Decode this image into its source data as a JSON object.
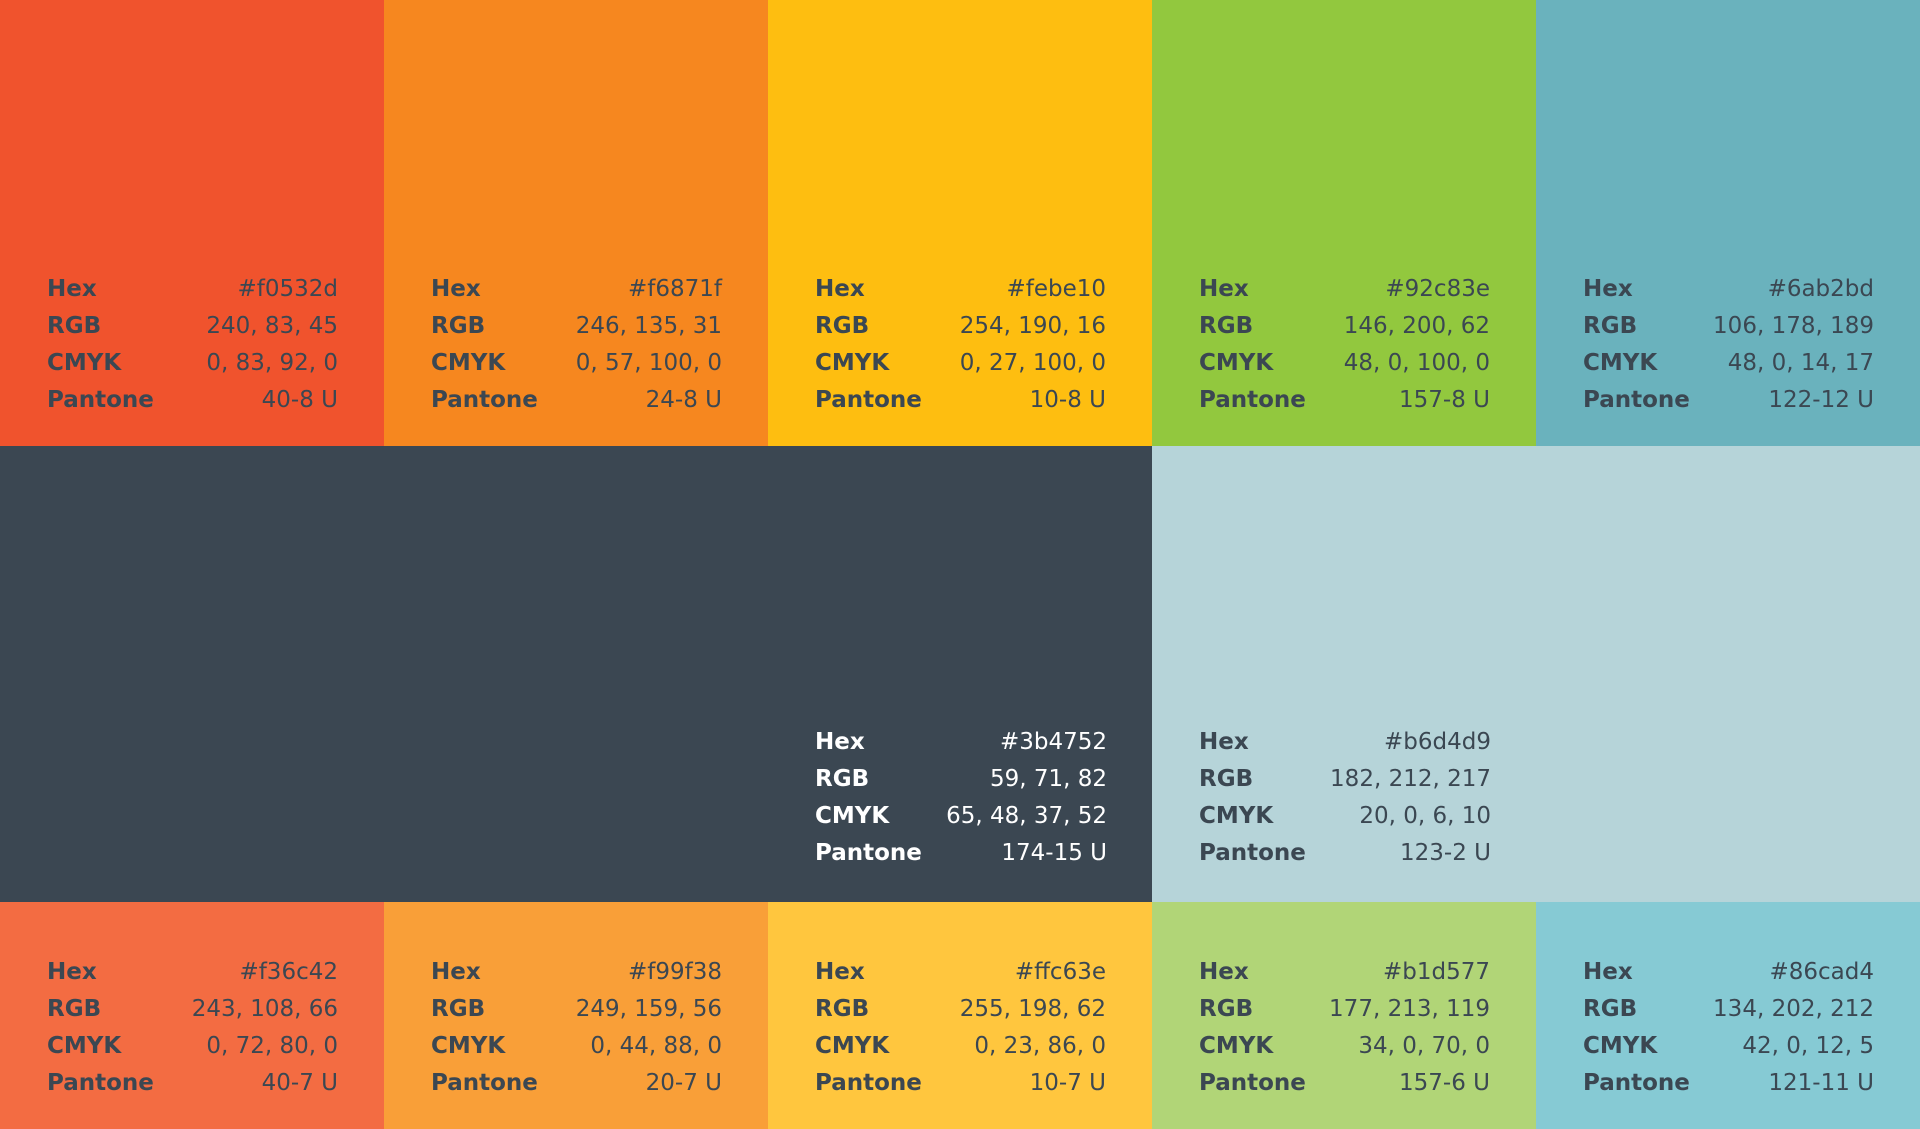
{
  "labels": {
    "hex": "Hex",
    "rgb": "RGB",
    "cmyk": "CMYK",
    "pantone": "Pantone"
  },
  "swatches": [
    {
      "id": "f0532d",
      "hex": "#f0532d",
      "rgb": "240, 83, 45",
      "cmyk": "0, 83, 92, 0",
      "pantone": "40-8 U",
      "bg": "#f0532d",
      "fg": "#3b4752"
    },
    {
      "id": "f6871f",
      "hex": "#f6871f",
      "rgb": "246, 135, 31",
      "cmyk": "0, 57, 100, 0",
      "pantone": "24-8 U",
      "bg": "#f6871f",
      "fg": "#3b4752"
    },
    {
      "id": "febe10",
      "hex": "#febe10",
      "rgb": "254, 190, 16",
      "cmyk": "0, 27, 100, 0",
      "pantone": "10-8 U",
      "bg": "#febe10",
      "fg": "#3b4752"
    },
    {
      "id": "92c83e",
      "hex": "#92c83e",
      "rgb": "146, 200, 62",
      "cmyk": "48, 0, 100, 0",
      "pantone": "157-8 U",
      "bg": "#92c83e",
      "fg": "#3b4752"
    },
    {
      "id": "6ab2bd",
      "hex": "#6ab2bd",
      "rgb": "106, 178, 189",
      "cmyk": "48, 0, 14, 17",
      "pantone": "122-12 U",
      "bg": "#6ab2bd",
      "fg": "#3b4752"
    },
    {
      "id": "3b4752",
      "hex": "#3b4752",
      "rgb": "59, 71, 82",
      "cmyk": "65, 48, 37, 52",
      "pantone": "174-15 U",
      "bg": "#3b4752",
      "fg": "#ffffff"
    },
    {
      "id": "b6d4d9",
      "hex": "#b6d4d9",
      "rgb": "182, 212, 217",
      "cmyk": "20, 0, 6, 10",
      "pantone": "123-2 U",
      "bg": "#b6d4d9",
      "fg": "#3b4752"
    },
    {
      "id": "f36c42",
      "hex": "#f36c42",
      "rgb": "243, 108, 66",
      "cmyk": "0, 72, 80, 0",
      "pantone": "40-7 U",
      "bg": "#f36c42",
      "fg": "#3b4752"
    },
    {
      "id": "f99f38",
      "hex": "#f99f38",
      "rgb": "249, 159, 56",
      "cmyk": "0, 44, 88, 0",
      "pantone": "20-7 U",
      "bg": "#f99f38",
      "fg": "#3b4752"
    },
    {
      "id": "ffc63e",
      "hex": "#ffc63e",
      "rgb": "255, 198, 62",
      "cmyk": "0, 23, 86, 0",
      "pantone": "10-7 U",
      "bg": "#ffc63e",
      "fg": "#3b4752"
    },
    {
      "id": "b1d577",
      "hex": "#b1d577",
      "rgb": "177, 213, 119",
      "cmyk": "34, 0, 70, 0",
      "pantone": "157-6 U",
      "bg": "#b1d577",
      "fg": "#3b4752"
    },
    {
      "id": "86cad4",
      "hex": "#86cad4",
      "rgb": "134, 202, 212",
      "cmyk": "42, 0, 12, 5",
      "pantone": "121-11 U",
      "bg": "#86cad4",
      "fg": "#3b4752"
    }
  ]
}
